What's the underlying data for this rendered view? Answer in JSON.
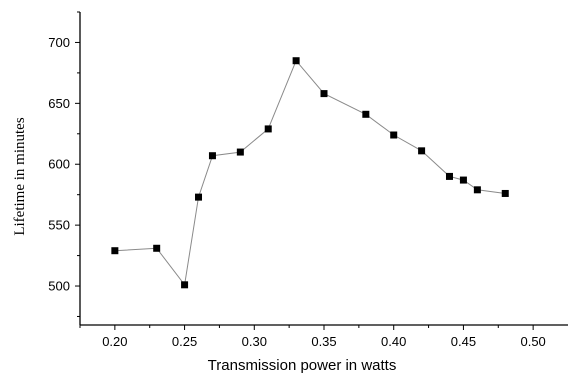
{
  "chart_data": {
    "type": "line",
    "title": "",
    "xlabel": "Transmission power in watts",
    "ylabel": "Lifetime in minutes",
    "xlim": [
      0.175,
      0.525
    ],
    "ylim": [
      468,
      725
    ],
    "xticks": [
      "0.20",
      "0.25",
      "0.30",
      "0.35",
      "0.40",
      "0.45",
      "0.50"
    ],
    "yticks": [
      "500",
      "550",
      "600",
      "650",
      "700"
    ],
    "grid": false,
    "series": [
      {
        "marker": "square",
        "color": "#000000",
        "line_color": "#8a8a8a",
        "x": [
          0.2,
          0.23,
          0.25,
          0.26,
          0.27,
          0.29,
          0.31,
          0.33,
          0.35,
          0.38,
          0.4,
          0.42,
          0.44,
          0.45,
          0.46,
          0.48
        ],
        "y": [
          529,
          531,
          501,
          573,
          607,
          610,
          629,
          685,
          658,
          641,
          624,
          611,
          590,
          587,
          579,
          576
        ]
      }
    ]
  }
}
